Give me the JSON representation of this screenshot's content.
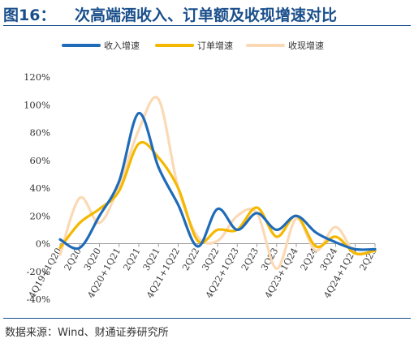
{
  "figure": {
    "label": "图16：",
    "title": "次高端酒收入、订单额及收现增速对比",
    "source": "数据来源：Wind、财通证券研究所",
    "title_color": "#1a4f8b"
  },
  "chart_data": {
    "type": "line",
    "categories": [
      "4Q19+1Q20",
      "2Q20",
      "3Q20",
      "4Q20+1Q21",
      "2Q21",
      "3Q21",
      "4Q21+1Q22",
      "2Q22",
      "3Q22",
      "4Q22+1Q23",
      "2Q23",
      "3Q23",
      "4Q23+1Q24",
      "2Q24",
      "3Q24",
      "4Q24+1Q25",
      "2Q25"
    ],
    "series": [
      {
        "name": "收入增速",
        "color": "#1f6bb8",
        "values": [
          3,
          -3,
          20,
          45,
          94,
          55,
          28,
          -2,
          25,
          10,
          22,
          10,
          20,
          8,
          1,
          -4,
          -4
        ]
      },
      {
        "name": "订单增速",
        "color": "#f5b800",
        "values": [
          -3,
          15,
          25,
          38,
          72,
          62,
          40,
          2,
          10,
          10,
          26,
          5,
          20,
          -2,
          5,
          -7,
          -5
        ]
      },
      {
        "name": "收现增速",
        "color": "#fbd9b5",
        "values": [
          -8,
          33,
          15,
          42,
          82,
          104,
          40,
          5,
          2,
          20,
          22,
          -18,
          18,
          -5,
          12,
          -7,
          -4
        ]
      }
    ],
    "yticks": [
      "120%",
      "100%",
      "80%",
      "60%",
      "40%",
      "20%",
      "0%",
      "-20%",
      "-40%"
    ],
    "ylim": [
      -40,
      120
    ],
    "legend_position": "top",
    "grid": false
  }
}
